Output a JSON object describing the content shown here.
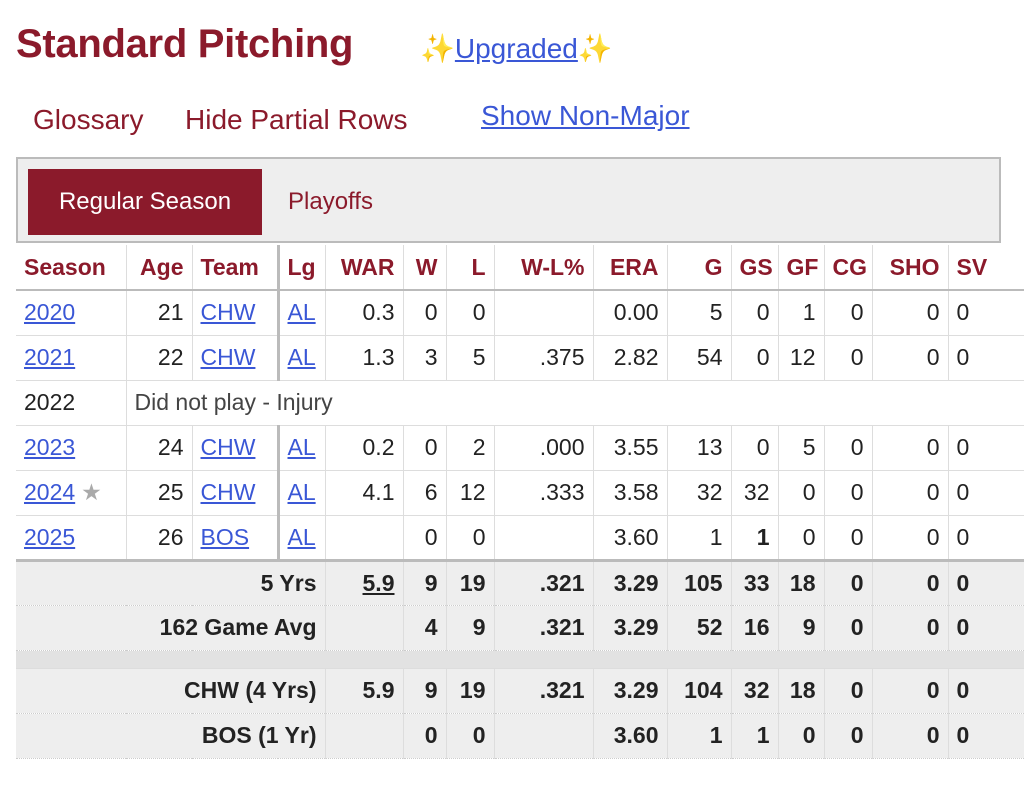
{
  "header": {
    "title": "Standard Pitching",
    "sparkle": "✨",
    "upgraded_label": "Upgraded",
    "glossary": "Glossary",
    "hide_partial": "Hide Partial Rows",
    "show_nonmajor": "Show Non-Major"
  },
  "tabs": {
    "regular": "Regular Season",
    "playoffs": "Playoffs"
  },
  "columns": [
    "Season",
    "Age",
    "Team",
    "Lg",
    "WAR",
    "W",
    "L",
    "W-L%",
    "ERA",
    "G",
    "GS",
    "GF",
    "CG",
    "SHO",
    "SV"
  ],
  "rows": [
    {
      "season": "2020",
      "age": "21",
      "team": "CHW",
      "lg": "AL",
      "war": "0.3",
      "w": "0",
      "l": "0",
      "wlp": "",
      "era": "0.00",
      "g": "5",
      "gs": "0",
      "gf": "1",
      "cg": "0",
      "sho": "0",
      "sv": "0"
    },
    {
      "season": "2021",
      "age": "22",
      "team": "CHW",
      "lg": "AL",
      "war": "1.3",
      "w": "3",
      "l": "5",
      "wlp": ".375",
      "era": "2.82",
      "g": "54",
      "gs": "0",
      "gf": "12",
      "cg": "0",
      "sho": "0",
      "sv": "0"
    },
    {
      "season": "2022",
      "note": "Did not play - Injury"
    },
    {
      "season": "2023",
      "age": "24",
      "team": "CHW",
      "lg": "AL",
      "war": "0.2",
      "w": "0",
      "l": "2",
      "wlp": ".000",
      "era": "3.55",
      "g": "13",
      "gs": "0",
      "gf": "5",
      "cg": "0",
      "sho": "0",
      "sv": "0"
    },
    {
      "season": "2024",
      "star": "★",
      "age": "25",
      "team": "CHW",
      "lg": "AL",
      "war": "4.1",
      "w": "6",
      "l": "12",
      "wlp": ".333",
      "era": "3.58",
      "g": "32",
      "gs": "32",
      "gf": "0",
      "cg": "0",
      "sho": "0",
      "sv": "0"
    },
    {
      "season": "2025",
      "age": "26",
      "team": "BOS",
      "lg": "AL",
      "war": "",
      "w": "0",
      "l": "0",
      "wlp": "",
      "era": "3.60",
      "g": "1",
      "gs": "1",
      "gf": "0",
      "cg": "0",
      "sho": "0",
      "sv": "0"
    }
  ],
  "totals": [
    {
      "label": "5 Yrs",
      "war": "5.9",
      "w": "9",
      "l": "19",
      "wlp": ".321",
      "era": "3.29",
      "g": "105",
      "gs": "33",
      "gf": "18",
      "cg": "0",
      "sho": "0",
      "sv": "0"
    },
    {
      "label": "162 Game Avg",
      "war": "",
      "w": "4",
      "l": "9",
      "wlp": ".321",
      "era": "3.29",
      "g": "52",
      "gs": "16",
      "gf": "9",
      "cg": "0",
      "sho": "0",
      "sv": "0"
    },
    {
      "label": "CHW (4 Yrs)",
      "war": "5.9",
      "w": "9",
      "l": "19",
      "wlp": ".321",
      "era": "3.29",
      "g": "104",
      "gs": "32",
      "gf": "18",
      "cg": "0",
      "sho": "0",
      "sv": "0"
    },
    {
      "label": "BOS (1 Yr)",
      "war": "",
      "w": "0",
      "l": "0",
      "wlp": "",
      "era": "3.60",
      "g": "1",
      "gs": "1",
      "gf": "0",
      "cg": "0",
      "sho": "0",
      "sv": "0"
    }
  ]
}
